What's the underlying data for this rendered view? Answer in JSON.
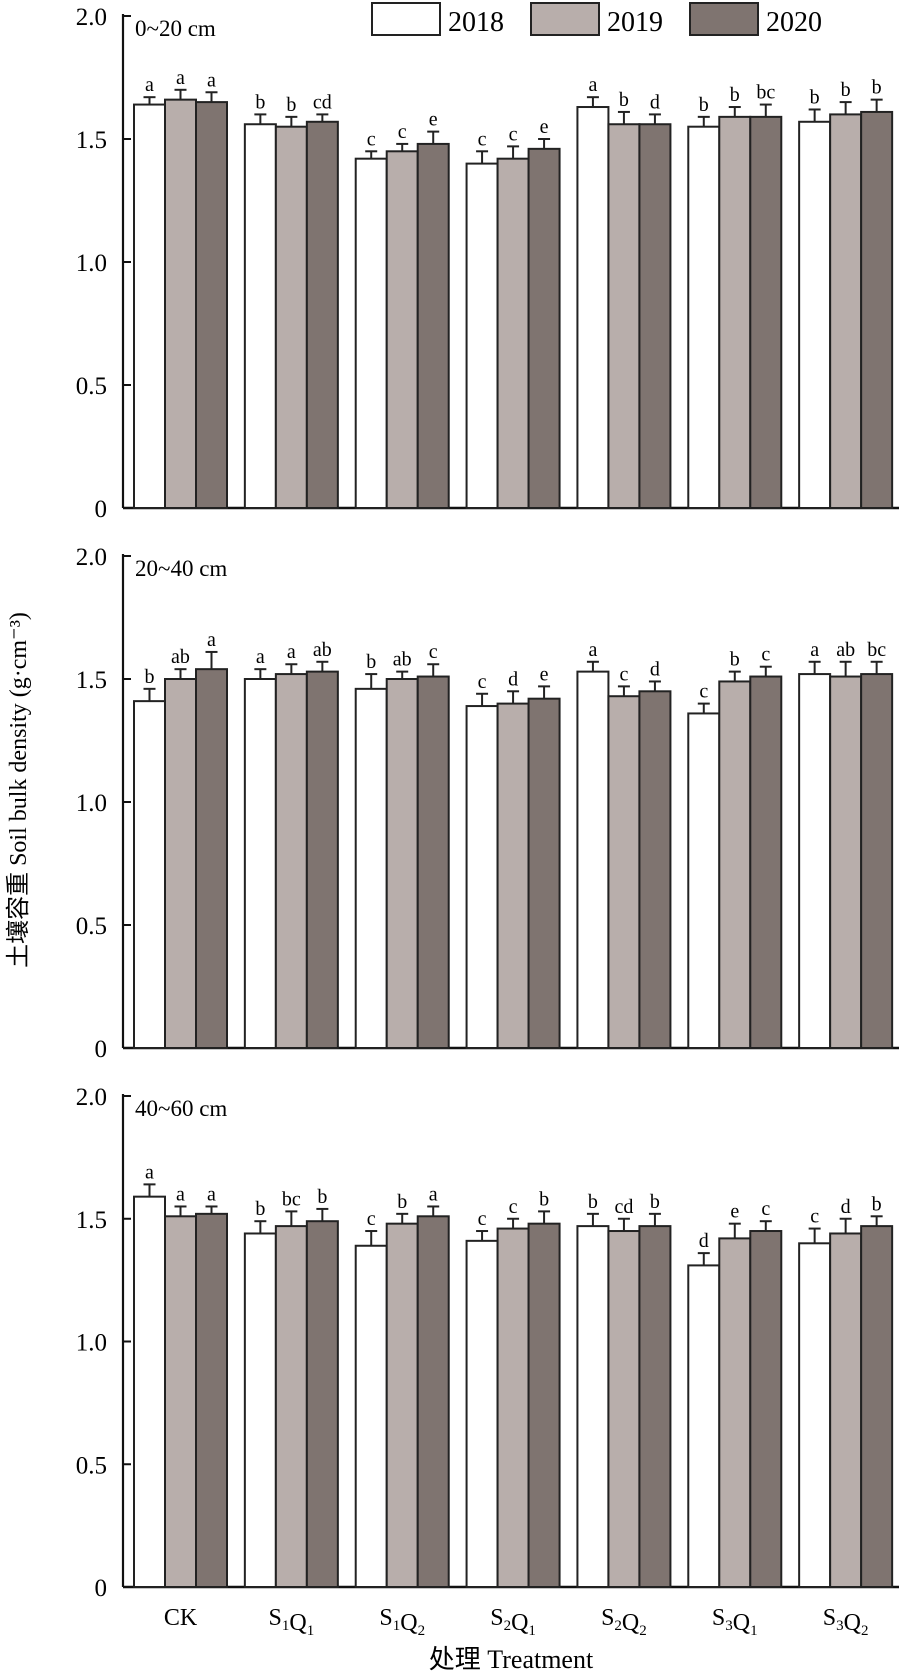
{
  "chart_data": {
    "type": "bar",
    "ylabel": "土壤容重 Soil bulk density (g·cm⁻³)",
    "xlabel": "处理 Treatment",
    "ylim": [
      0,
      2.0
    ],
    "yticks": [
      "0",
      "0.5",
      "1.0",
      "1.5",
      "2.0"
    ],
    "yticks_values": [
      0,
      0.5,
      1.0,
      1.5,
      2.0
    ],
    "categories": [
      {
        "main": "CK",
        "parts": [
          [
            "CK",
            ""
          ]
        ]
      },
      {
        "main": "S1Q1",
        "parts": [
          [
            "S",
            "1"
          ],
          [
            "Q",
            "1"
          ]
        ]
      },
      {
        "main": "S1Q2",
        "parts": [
          [
            "S",
            "1"
          ],
          [
            "Q",
            "2"
          ]
        ]
      },
      {
        "main": "S2Q1",
        "parts": [
          [
            "S",
            "2"
          ],
          [
            "Q",
            "1"
          ]
        ]
      },
      {
        "main": "S2Q2",
        "parts": [
          [
            "S",
            "2"
          ],
          [
            "Q",
            "2"
          ]
        ]
      },
      {
        "main": "S3Q1",
        "parts": [
          [
            "S",
            "3"
          ],
          [
            "Q",
            "1"
          ]
        ]
      },
      {
        "main": "S3Q2",
        "parts": [
          [
            "S",
            "3"
          ],
          [
            "Q",
            "2"
          ]
        ]
      }
    ],
    "legend": {
      "placement": "top-right",
      "entries": [
        "2018",
        "2019",
        "2020"
      ]
    },
    "colors": {
      "2018": "#ffffff",
      "2019": "#b8aeab",
      "2020": "#7f7470"
    },
    "panels": [
      {
        "title": "0~20 cm",
        "series": [
          {
            "name": "2018",
            "values": [
              1.64,
              1.56,
              1.42,
              1.4,
              1.63,
              1.55,
              1.57
            ],
            "errors": [
              0.03,
              0.04,
              0.03,
              0.05,
              0.04,
              0.04,
              0.05
            ],
            "letters": [
              "a",
              "b",
              "c",
              "c",
              "a",
              "b",
              "b"
            ]
          },
          {
            "name": "2019",
            "values": [
              1.66,
              1.55,
              1.45,
              1.42,
              1.56,
              1.59,
              1.6
            ],
            "errors": [
              0.04,
              0.04,
              0.03,
              0.05,
              0.05,
              0.04,
              0.05
            ],
            "letters": [
              "a",
              "b",
              "c",
              "c",
              "b",
              "b",
              "b"
            ]
          },
          {
            "name": "2020",
            "values": [
              1.65,
              1.57,
              1.48,
              1.46,
              1.56,
              1.59,
              1.61
            ],
            "errors": [
              0.04,
              0.03,
              0.05,
              0.04,
              0.04,
              0.05,
              0.05
            ],
            "letters": [
              "a",
              "cd",
              "e",
              "e",
              "d",
              "bc",
              "b"
            ]
          }
        ]
      },
      {
        "title": "20~40 cm",
        "series": [
          {
            "name": "2018",
            "values": [
              1.41,
              1.5,
              1.46,
              1.39,
              1.53,
              1.36,
              1.52
            ],
            "errors": [
              0.05,
              0.04,
              0.06,
              0.05,
              0.04,
              0.04,
              0.05
            ],
            "letters": [
              "b",
              "a",
              "b",
              "c",
              "a",
              "c",
              "a"
            ]
          },
          {
            "name": "2019",
            "values": [
              1.5,
              1.52,
              1.5,
              1.4,
              1.43,
              1.49,
              1.51
            ],
            "errors": [
              0.04,
              0.04,
              0.03,
              0.05,
              0.04,
              0.04,
              0.06
            ],
            "letters": [
              "ab",
              "a",
              "ab",
              "d",
              "c",
              "b",
              "ab"
            ]
          },
          {
            "name": "2020",
            "values": [
              1.54,
              1.53,
              1.51,
              1.42,
              1.45,
              1.51,
              1.52
            ],
            "errors": [
              0.07,
              0.04,
              0.05,
              0.05,
              0.04,
              0.04,
              0.05
            ],
            "letters": [
              "a",
              "ab",
              "c",
              "e",
              "d",
              "c",
              "bc"
            ]
          }
        ]
      },
      {
        "title": "40~60 cm",
        "series": [
          {
            "name": "2018",
            "values": [
              1.59,
              1.44,
              1.39,
              1.41,
              1.47,
              1.31,
              1.4
            ],
            "errors": [
              0.05,
              0.05,
              0.06,
              0.04,
              0.05,
              0.05,
              0.06
            ],
            "letters": [
              "a",
              "b",
              "c",
              "c",
              "b",
              "d",
              "c"
            ]
          },
          {
            "name": "2019",
            "values": [
              1.51,
              1.47,
              1.48,
              1.46,
              1.45,
              1.42,
              1.44
            ],
            "errors": [
              0.04,
              0.06,
              0.04,
              0.04,
              0.05,
              0.06,
              0.06
            ],
            "letters": [
              "a",
              "bc",
              "b",
              "c",
              "cd",
              "e",
              "d"
            ]
          },
          {
            "name": "2020",
            "values": [
              1.52,
              1.49,
              1.51,
              1.48,
              1.47,
              1.45,
              1.47
            ],
            "errors": [
              0.03,
              0.05,
              0.04,
              0.05,
              0.05,
              0.04,
              0.04
            ],
            "letters": [
              "a",
              "b",
              "a",
              "b",
              "b",
              "c",
              "b"
            ]
          }
        ]
      }
    ]
  }
}
